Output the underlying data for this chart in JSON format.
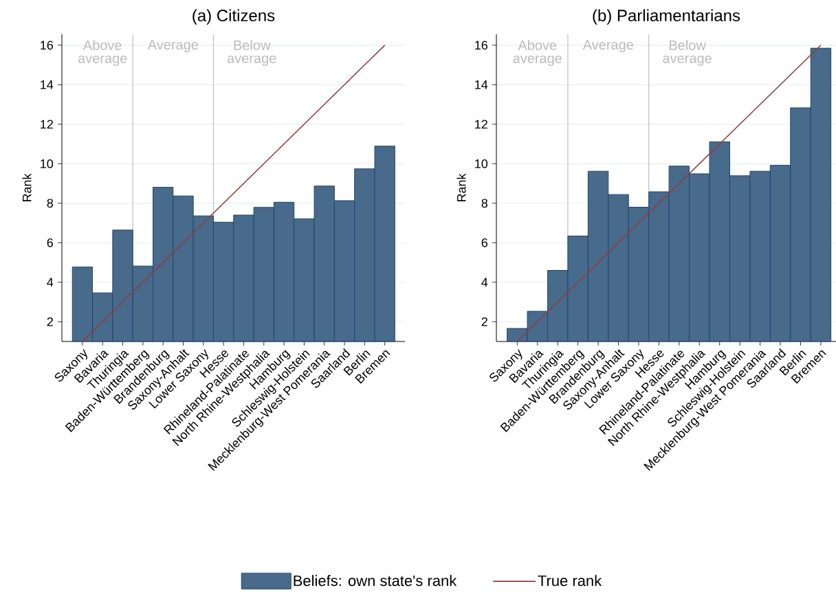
{
  "chart_data": [
    {
      "type": "bar",
      "title": "(a) Citizens",
      "ylabel": "Rank",
      "categories": [
        "Saxony",
        "Bavaria",
        "Thuringia",
        "Baden-Württemberg",
        "Brandenburg",
        "Saxony-Anhalt",
        "Lower Saxony",
        "Hesse",
        "Rhineland-Palatinate",
        "North Rhine-Westphalia",
        "Hamburg",
        "Schleswig-Holstein",
        "Mecklenburg-West Pomerania",
        "Saarland",
        "Berlin",
        "Bremen"
      ],
      "series": [
        {
          "name": "Beliefs: own state's rank",
          "color": "#486a8b",
          "values": [
            4.77,
            3.46,
            6.64,
            4.82,
            8.81,
            8.37,
            7.36,
            7.04,
            7.4,
            7.79,
            8.05,
            7.21,
            8.87,
            8.13,
            9.74,
            10.89
          ]
        },
        {
          "name": "True rank",
          "type": "line",
          "color": "#903b3e",
          "values": [
            1,
            2,
            3,
            4,
            5,
            6,
            7,
            8,
            9,
            10,
            11,
            12,
            13,
            14,
            15,
            16
          ]
        }
      ],
      "ylim": [
        1,
        16.55
      ],
      "yticks": [
        2,
        4,
        6,
        8,
        10,
        12,
        14,
        16
      ],
      "grid": "y",
      "legend": "bottom",
      "annotations": [
        "Above average",
        "Average",
        "Below average"
      ]
    },
    {
      "type": "bar",
      "title": "(b) Parliamentarians",
      "ylabel": "Rank",
      "categories": [
        "Saxony",
        "Bavaria",
        "Thuringia",
        "Baden-Württemberg",
        "Brandenburg",
        "Saxony-Anhalt",
        "Lower Saxony",
        "Hesse",
        "Rhineland-Palatinate",
        "North Rhine-Westphalia",
        "Hamburg",
        "Schleswig-Holstein",
        "Mecklenburg-West Pomerania",
        "Saarland",
        "Berlin",
        "Bremen"
      ],
      "series": [
        {
          "color": "#486a8b",
          "values": [
            1.66,
            2.53,
            4.6,
            6.34,
            9.62,
            8.44,
            7.8,
            8.58,
            9.88,
            9.49,
            11.11,
            9.39,
            9.62,
            9.92,
            12.83,
            15.85
          ]
        },
        {
          "type": "line",
          "color": "#903b3e",
          "values": [
            1,
            2,
            3,
            4,
            5,
            6,
            7,
            8,
            9,
            10,
            11,
            12,
            13,
            14,
            15,
            16
          ]
        }
      ],
      "ylim": [
        1,
        16.55
      ],
      "yticks": [
        2,
        4,
        6,
        8,
        10,
        12,
        14,
        16
      ],
      "grid": "y",
      "annotations": [
        "Above average",
        "Average",
        "Below average"
      ]
    }
  ]
}
